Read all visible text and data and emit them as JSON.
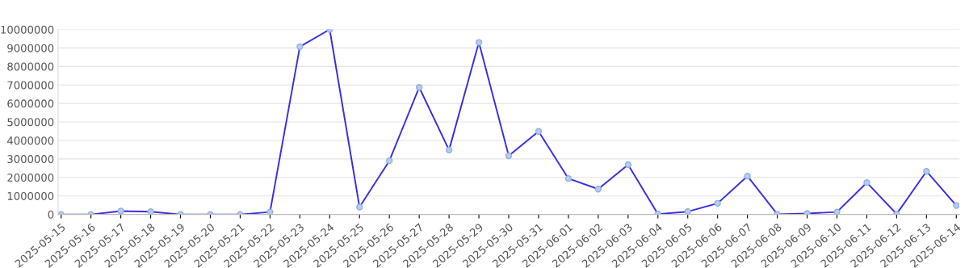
{
  "chart_data": {
    "type": "line",
    "categories": [
      "2025-05-15",
      "2025-05-16",
      "2025-05-17",
      "2025-05-18",
      "2025-05-19",
      "2025-05-20",
      "2025-05-21",
      "2025-05-22",
      "2025-05-23",
      "2025-05-24",
      "2025-05-25",
      "2025-05-26",
      "2025-05-27",
      "2025-05-28",
      "2025-05-29",
      "2025-05-30",
      "2025-05-31",
      "2025-06-01",
      "2025-06-02",
      "2025-06-03",
      "2025-06-04",
      "2025-06-05",
      "2025-06-06",
      "2025-06-07",
      "2025-06-08",
      "2025-06-09",
      "2025-06-10",
      "2025-06-11",
      "2025-06-12",
      "2025-06-13",
      "2025-06-14"
    ],
    "series": [
      {
        "color": "#3a2ee0",
        "values": [
          0,
          0,
          180000,
          150000,
          0,
          0,
          0,
          130000,
          9070000,
          10000000,
          400000,
          2900000,
          6870000,
          3480000,
          9300000,
          3170000,
          4490000,
          1940000,
          1370000,
          2690000,
          20000,
          150000,
          600000,
          2070000,
          10000,
          50000,
          130000,
          1720000,
          20000,
          2330000,
          480000
        ]
      }
    ],
    "ylim": [
      0,
      10000000
    ],
    "yticks": [
      0,
      1000000,
      2000000,
      3000000,
      4000000,
      5000000,
      6000000,
      7000000,
      8000000,
      9000000,
      10000000
    ],
    "grid": "y",
    "marker": "circle",
    "line_style": "solid"
  }
}
